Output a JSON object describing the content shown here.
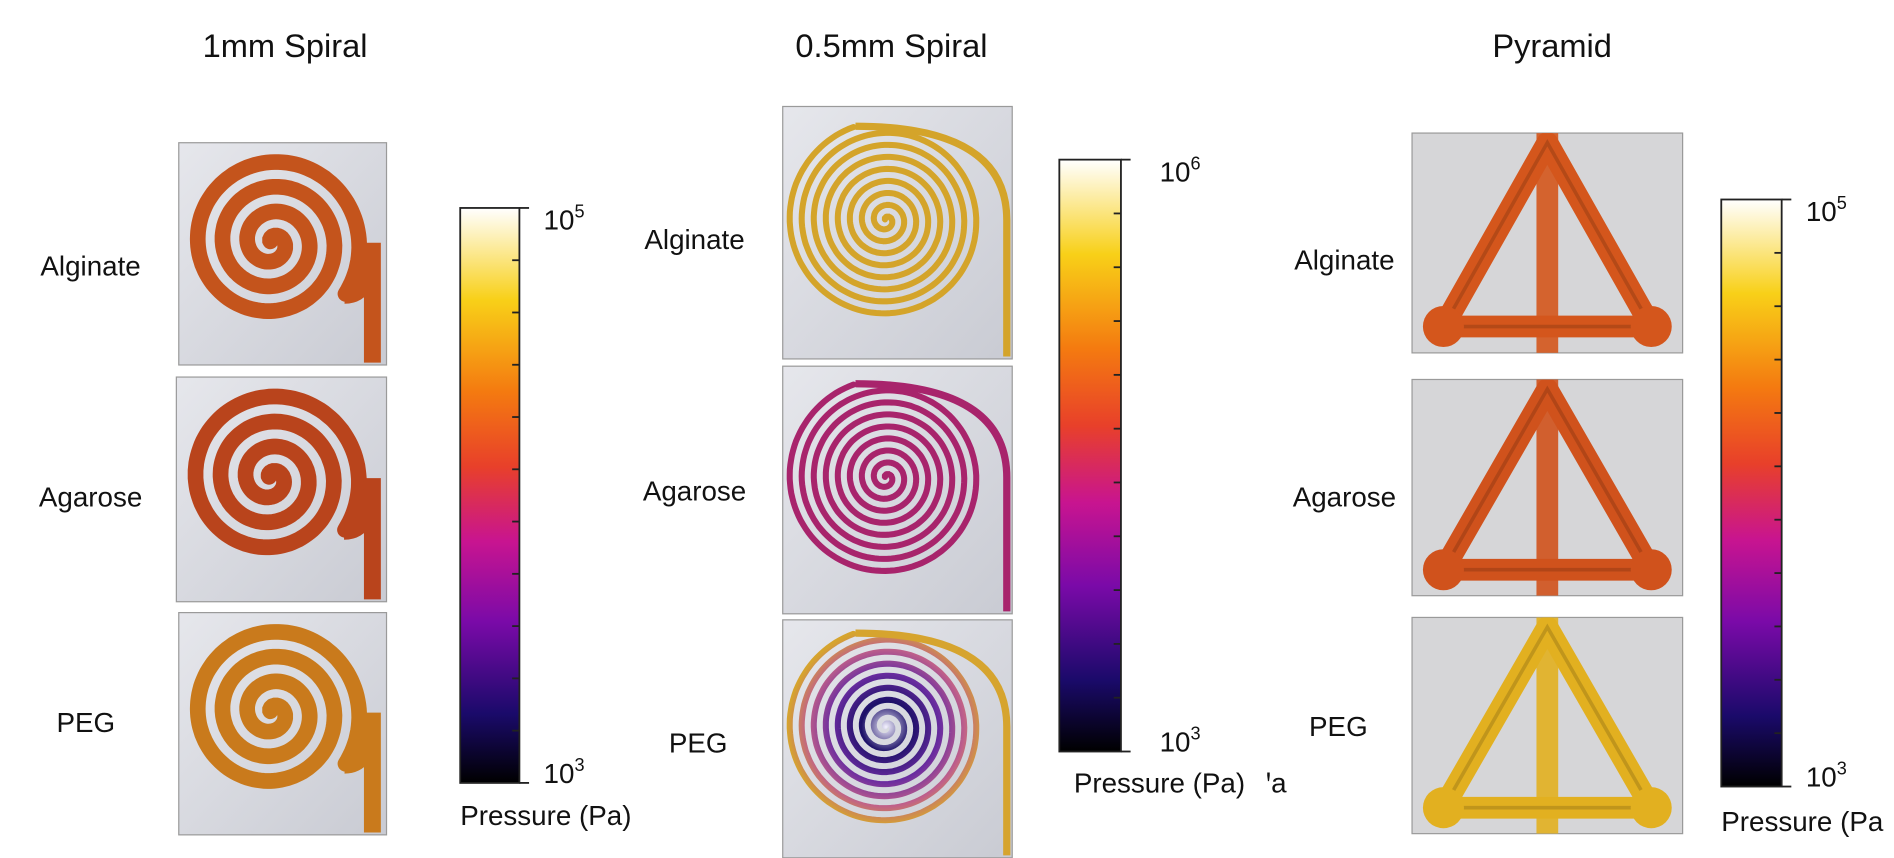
{
  "panels": [
    {
      "title": "1mm Spiral",
      "rows": [
        "Alginate",
        "Agarose",
        "PEG"
      ],
      "colorbar": {
        "max": {
          "base": "10",
          "exponent": "5"
        },
        "min": {
          "base": "10",
          "exponent": "3"
        },
        "label": "Pressure (Pa)"
      }
    },
    {
      "title": "0.5mm Spiral",
      "rows": [
        "Alginate",
        "Agarose",
        "PEG"
      ],
      "colorbar": {
        "max": {
          "base": "10",
          "exponent": "6"
        },
        "min": {
          "base": "10",
          "exponent": "3"
        },
        "label": "Pressure (Pa)",
        "overflow_text": "ꞌa"
      }
    },
    {
      "title": "Pyramid",
      "rows": [
        "Alginate",
        "Agarose",
        "PEG"
      ],
      "colorbar": {
        "max": {
          "base": "10",
          "exponent": "5"
        },
        "min": {
          "base": "10",
          "exponent": "3"
        },
        "label": "Pressure (Pa"
      }
    }
  ]
}
